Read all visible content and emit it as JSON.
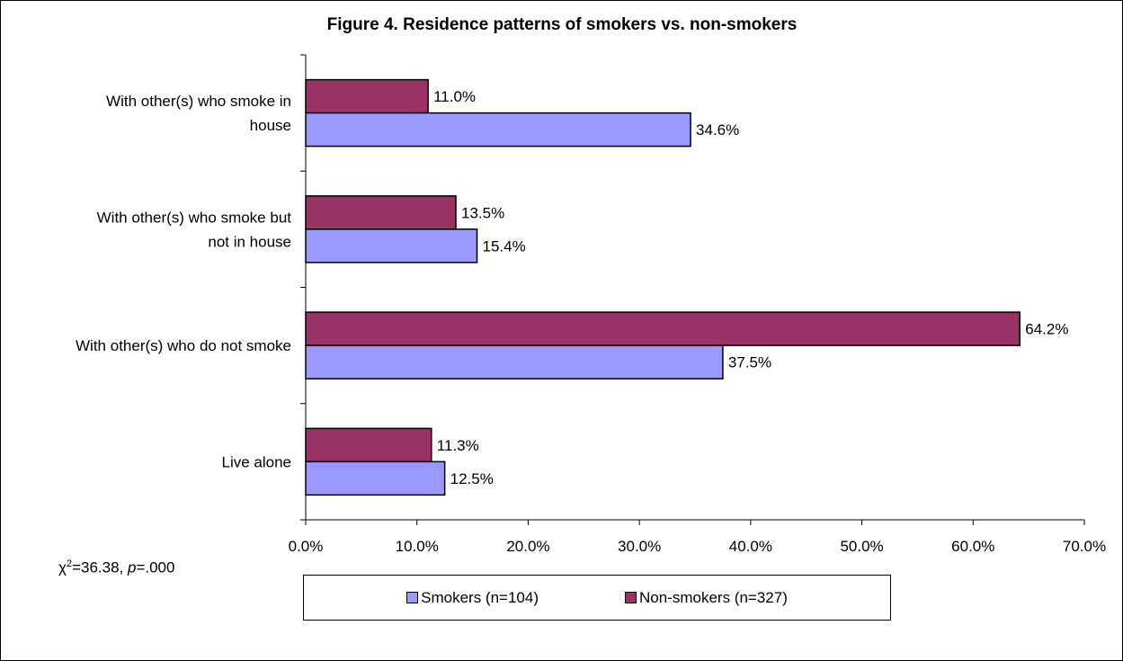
{
  "chart_data": {
    "type": "bar",
    "orientation": "horizontal",
    "title": "Figure 4.  Residence patterns of smokers vs. non-smokers",
    "categories": [
      [
        "With other(s) who smoke in",
        "house"
      ],
      [
        "With other(s) who smoke but",
        "not in house"
      ],
      [
        "With other(s) who do not smoke"
      ],
      [
        "Live alone"
      ]
    ],
    "series": [
      {
        "name": "Non-smokers (n=327)",
        "color": "#993366",
        "values": [
          11.0,
          13.5,
          64.2,
          11.3
        ],
        "labels": [
          "11.0%",
          "13.5%",
          "64.2%",
          "11.3%"
        ]
      },
      {
        "name": "Smokers (n=104)",
        "color": "#9999ff",
        "values": [
          34.6,
          15.4,
          37.5,
          12.5
        ],
        "labels": [
          "34.6%",
          "15.4%",
          "37.5%",
          "12.5%"
        ]
      }
    ],
    "xlim": [
      0,
      70
    ],
    "xticks": [
      "0.0%",
      "10.0%",
      "20.0%",
      "30.0%",
      "40.0%",
      "50.0%",
      "60.0%",
      "70.0%"
    ],
    "grid": false,
    "legend_position": "bottom",
    "legend_order": [
      "Smokers (n=104)",
      "Non-smokers (n=327)"
    ]
  },
  "stat": {
    "chi_symbol": "χ",
    "exponent": "2",
    "chi_value": "=36.38, ",
    "p_symbol": "p",
    "p_value": "=.000"
  }
}
